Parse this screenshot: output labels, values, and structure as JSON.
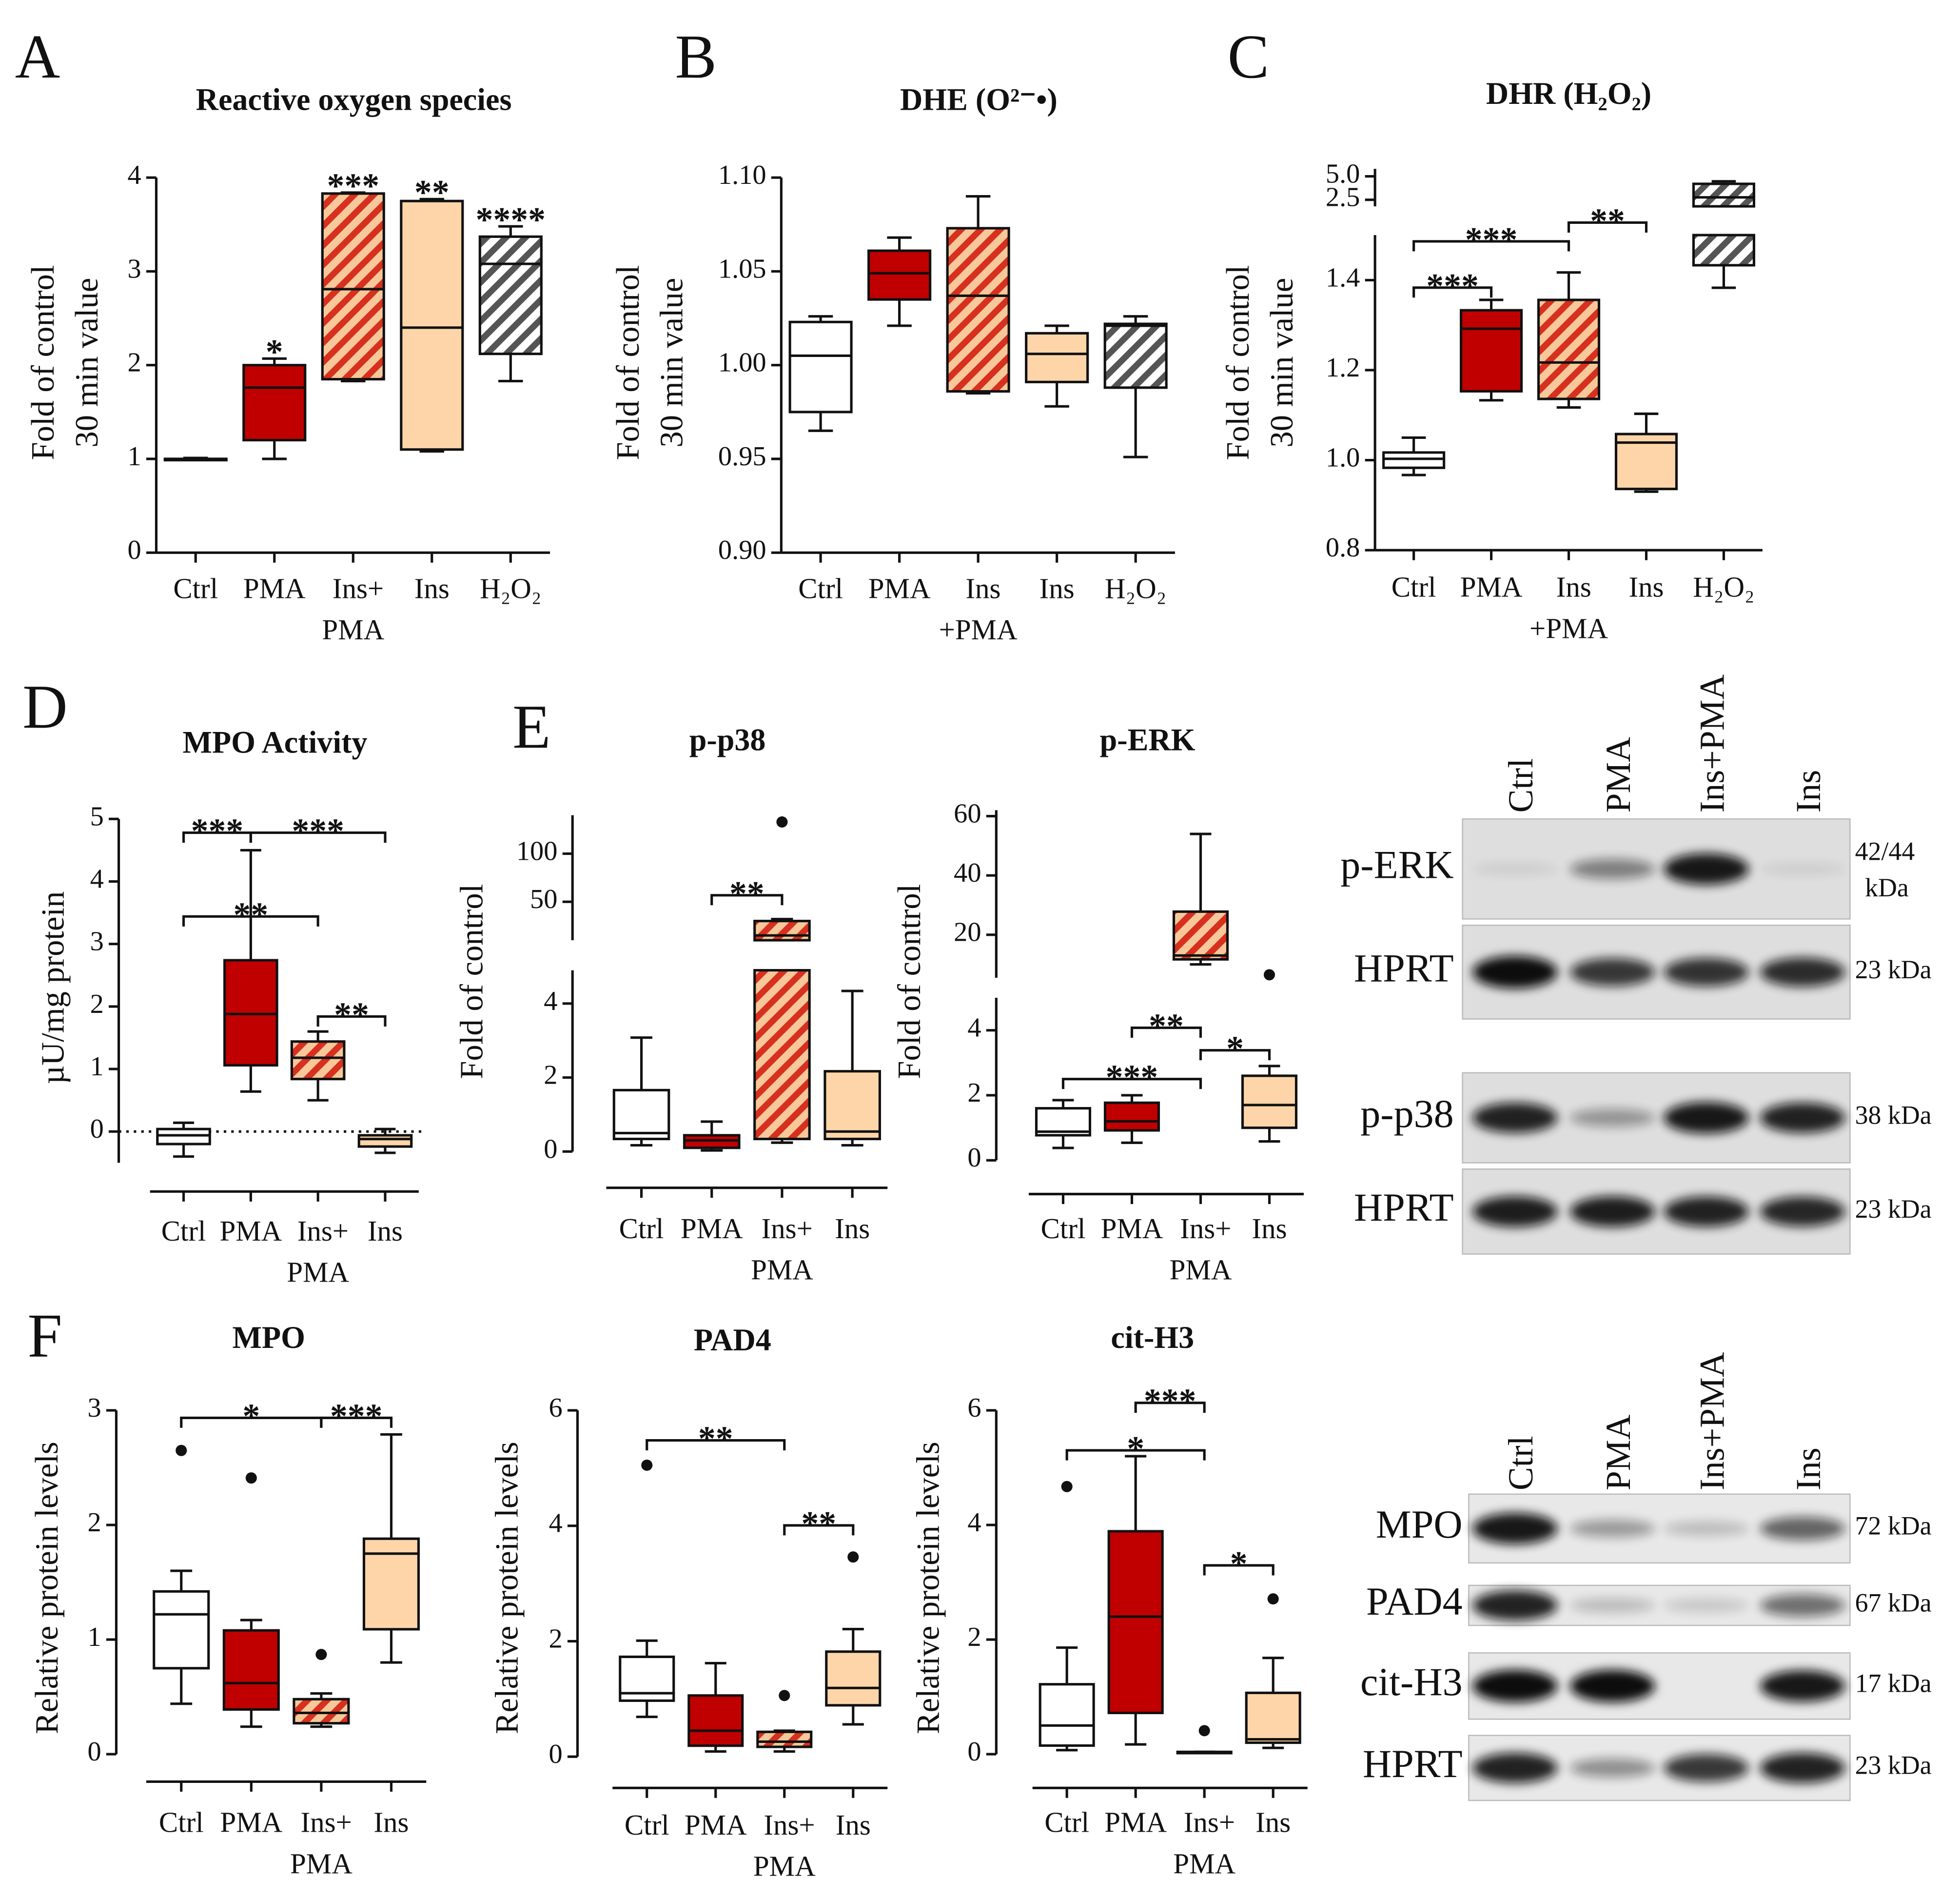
{
  "panel_letters": [
    "A",
    "B",
    "C",
    "D",
    "E",
    "F"
  ],
  "chart_data": [
    {
      "type": "box",
      "title": "Reactive oxygen species",
      "ylabel": [
        "Fold of control",
        "30 min value"
      ],
      "categories": [
        [
          "Ctrl"
        ],
        [
          "PMA"
        ],
        [
          "Ins+",
          "PMA"
        ],
        [
          "Ins"
        ],
        [
          "H₂O₂"
        ]
      ],
      "colors": [
        "#ffffff",
        "#c00000",
        "#f8c89a",
        "#fdd5a8",
        "#ffffff"
      ],
      "hatch_colors": [
        null,
        null,
        "#d7301f",
        null,
        "#555555"
      ],
      "boxes": [
        {
          "min": 0.99,
          "q1": 0.99,
          "median": 1,
          "q3": 1,
          "max": 1.01
        },
        {
          "min": 1.0,
          "q1": 1.2,
          "median": 1.76,
          "q3": 2.0,
          "max": 2.07
        },
        {
          "min": 1.83,
          "q1": 1.85,
          "median": 2.81,
          "q3": 3.83,
          "max": 3.84
        },
        {
          "min": 1.08,
          "q1": 1.1,
          "median": 2.4,
          "q3": 3.75,
          "max": 3.77
        },
        {
          "min": 1.83,
          "q1": 2.12,
          "median": 3.08,
          "q3": 3.37,
          "max": 3.48
        }
      ],
      "ylim": [
        0,
        4
      ],
      "yticks": [
        0,
        1,
        2,
        3,
        4
      ],
      "stars": [
        null,
        "*",
        "***",
        "**",
        "****"
      ]
    },
    {
      "type": "box",
      "title": "DHE (O²⁻•)",
      "ylabel": [
        "Fold of control",
        "30 min value"
      ],
      "categories": [
        [
          "Ctrl"
        ],
        [
          "PMA"
        ],
        [
          "Ins",
          "+PMA"
        ],
        [
          "Ins"
        ],
        [
          "H₂O₂"
        ]
      ],
      "colors": [
        "#ffffff",
        "#c00000",
        "#f8c89a",
        "#fdd5a8",
        "#ffffff"
      ],
      "hatch_colors": [
        null,
        null,
        "#d7301f",
        null,
        "#555555"
      ],
      "boxes": [
        {
          "min": 0.965,
          "q1": 0.975,
          "median": 1.005,
          "q3": 1.023,
          "max": 1.026
        },
        {
          "min": 1.021,
          "q1": 1.035,
          "median": 1.049,
          "q3": 1.061,
          "max": 1.068
        },
        {
          "min": 0.985,
          "q1": 0.986,
          "median": 1.037,
          "q3": 1.073,
          "max": 1.09
        },
        {
          "min": 0.978,
          "q1": 0.991,
          "median": 1.006,
          "q3": 1.017,
          "max": 1.021
        },
        {
          "min": 0.951,
          "q1": 0.988,
          "median": 1.021,
          "q3": 1.022,
          "max": 1.026
        }
      ],
      "ylim": [
        0.9,
        1.1
      ],
      "yticks": [
        {
          "value": 0.9,
          "label": "0.90"
        },
        {
          "value": 0.95,
          "label": "0.95"
        },
        {
          "value": 1,
          "label": "1.00"
        },
        {
          "value": 1.05,
          "label": "1.05"
        },
        {
          "value": 1.1,
          "label": "1.10"
        }
      ]
    },
    {
      "type": "box",
      "title": "DHR (H₂O₂)",
      "ylabel": [
        "Fold of control",
        "30 min value"
      ],
      "categories": [
        [
          "Ctrl"
        ],
        [
          "PMA"
        ],
        [
          "Ins",
          "+PMA"
        ],
        [
          "Ins"
        ],
        [
          "H₂O₂"
        ]
      ],
      "colors": [
        "#ffffff",
        "#c00000",
        "#f8c89a",
        "#fdd5a8",
        "#ffffff"
      ],
      "hatch_colors": [
        null,
        null,
        "#d7301f",
        null,
        "#555555"
      ],
      "boxes": [
        {
          "min": 0.967,
          "q1": 0.983,
          "median": 1.003,
          "q3": 1.017,
          "max": 1.05
        },
        {
          "min": 1.133,
          "q1": 1.153,
          "median": 1.292,
          "q3": 1.333,
          "max": 1.356
        },
        {
          "min": 1.117,
          "q1": 1.136,
          "median": 1.217,
          "q3": 1.356,
          "max": 1.417
        },
        {
          "min": 0.93,
          "q1": 0.936,
          "median": 1.039,
          "q3": 1.058,
          "max": 1.103
        },
        {
          "min": 1.383,
          "q1": 1.433,
          "median": 2.76,
          "q3": 4.2,
          "max": 4.47
        }
      ],
      "axis_segments": [
        {
          "ylim": [
            0.8,
            1.5
          ],
          "yticks": [
            0.8,
            {
              "value": 1,
              "label": "1.0"
            },
            1.2,
            1.4
          ]
        },
        {
          "ylim": [
            1.8,
            5.8
          ],
          "yticks": [
            2.5,
            {
              "value": 5,
              "label": "5.0"
            }
          ]
        }
      ],
      "brackets": [
        {
          "from": 0,
          "to": 1,
          "label": "***"
        },
        {
          "from": 0,
          "to": 2,
          "label": "***"
        },
        {
          "from": 2,
          "to": 3,
          "label": "**"
        }
      ]
    },
    {
      "type": "box",
      "title": "MPO Activity",
      "ylabel": [
        "µU/mg protein"
      ],
      "categories": [
        [
          "Ctrl"
        ],
        [
          "PMA"
        ],
        [
          "Ins+",
          "PMA"
        ],
        [
          "Ins"
        ]
      ],
      "colors": [
        "#ffffff",
        "#c00000",
        "#f8c89a",
        "#fdd5a8"
      ],
      "hatch_colors": [
        null,
        null,
        "#d7301f",
        null
      ],
      "boxes": [
        {
          "min": -0.4,
          "q1": -0.2,
          "median": -0.06,
          "q3": 0.04,
          "max": 0.14
        },
        {
          "min": 0.64,
          "q1": 1.06,
          "median": 1.88,
          "q3": 2.74,
          "max": 4.5
        },
        {
          "min": 0.5,
          "q1": 0.84,
          "median": 1.18,
          "q3": 1.44,
          "max": 1.6
        },
        {
          "min": -0.34,
          "q1": -0.24,
          "median": -0.12,
          "q3": -0.06,
          "max": 0.04
        }
      ],
      "ylim": [
        -0.5,
        5
      ],
      "yticks": [
        0,
        1,
        2,
        3,
        4,
        5
      ],
      "zero_line": true,
      "brackets": [
        {
          "from": 0,
          "to": 1,
          "label": "***"
        },
        {
          "from": 1,
          "to": 3,
          "label": "***"
        },
        {
          "from": 0,
          "to": 2,
          "label": "**"
        },
        {
          "from": 2,
          "to": 3,
          "label": "**"
        }
      ]
    },
    {
      "type": "box",
      "title": "p-p38",
      "ylabel": [
        "Fold of control"
      ],
      "categories": [
        [
          "Ctrl"
        ],
        [
          "PMA"
        ],
        [
          "Ins+",
          "PMA"
        ],
        [
          "Ins"
        ]
      ],
      "colors": [
        "#ffffff",
        "#c00000",
        "#f8c89a",
        "#fdd5a8"
      ],
      "hatch_colors": [
        null,
        null,
        "#d7301f",
        null
      ],
      "boxes": [
        {
          "min": 0.17,
          "q1": 0.34,
          "median": 0.5,
          "q3": 1.66,
          "max": 3.08
        },
        {
          "min": 0.03,
          "q1": 0.1,
          "median": 0.3,
          "q3": 0.44,
          "max": 0.81
        },
        {
          "min": 0.24,
          "q1": 0.34,
          "median": 15,
          "q3": 30,
          "max": 32,
          "outliers": [
            133
          ]
        },
        {
          "min": 0.17,
          "q1": 0.34,
          "median": 0.54,
          "q3": 2.17,
          "max": 4.34
        }
      ],
      "axis_segments": [
        {
          "ylim": [
            0,
            4.9
          ],
          "yticks": [
            0,
            2,
            4
          ]
        },
        {
          "ylim": [
            10,
            140
          ],
          "yticks": [
            50,
            100
          ]
        }
      ],
      "brackets": [
        {
          "from": 1,
          "to": 2,
          "label": "**"
        }
      ]
    },
    {
      "type": "box",
      "title": "p-ERK",
      "ylabel": [
        "Fold of control"
      ],
      "categories": [
        [
          "Ctrl"
        ],
        [
          "PMA"
        ],
        [
          "Ins+",
          "PMA"
        ],
        [
          "Ins"
        ]
      ],
      "colors": [
        "#ffffff",
        "#c00000",
        "#f8c89a",
        "#fdd5a8"
      ],
      "hatch_colors": [
        null,
        null,
        "#d7301f",
        null
      ],
      "boxes": [
        {
          "min": 0.38,
          "q1": 0.77,
          "median": 0.88,
          "q3": 1.6,
          "max": 1.85
        },
        {
          "min": 0.54,
          "q1": 0.92,
          "median": 1.2,
          "q3": 1.77,
          "max": 2.0
        },
        {
          "min": 10,
          "q1": 11.7,
          "median": 13,
          "q3": 27.8,
          "max": 54
        },
        {
          "min": 0.58,
          "q1": 1.0,
          "median": 1.7,
          "q3": 2.6,
          "max": 2.9,
          "outliers": [
            6.5
          ]
        }
      ],
      "axis_segments": [
        {
          "ylim": [
            0,
            5
          ],
          "yticks": [
            0,
            2,
            4
          ]
        },
        {
          "ylim": [
            5.5,
            62
          ],
          "yticks": [
            20,
            40,
            60
          ]
        }
      ],
      "brackets": [
        {
          "from": 1,
          "to": 2,
          "label": "**"
        },
        {
          "from": 0,
          "to": 2,
          "label": "***"
        },
        {
          "from": 2,
          "to": 3,
          "label": "*"
        }
      ]
    },
    {
      "type": "box",
      "title": "MPO",
      "ylabel": [
        "Relative protein levels"
      ],
      "categories": [
        [
          "Ctrl"
        ],
        [
          "PMA"
        ],
        [
          "Ins+",
          "PMA"
        ],
        [
          "Ins"
        ]
      ],
      "colors": [
        "#ffffff",
        "#c00000",
        "#f8c89a",
        "#fdd5a8"
      ],
      "hatch_colors": [
        null,
        null,
        "#d7301f",
        null
      ],
      "boxes": [
        {
          "min": 0.44,
          "q1": 0.75,
          "median": 1.22,
          "q3": 1.42,
          "max": 1.6,
          "outliers": [
            2.65
          ]
        },
        {
          "min": 0.24,
          "q1": 0.39,
          "median": 0.62,
          "q3": 1.08,
          "max": 1.17,
          "outliers": [
            2.41
          ]
        },
        {
          "min": 0.24,
          "q1": 0.27,
          "median": 0.36,
          "q3": 0.48,
          "max": 0.53,
          "outliers": [
            0.87
          ]
        },
        {
          "min": 0.8,
          "q1": 1.09,
          "median": 1.75,
          "q3": 1.88,
          "max": 2.79
        }
      ],
      "ylim": [
        0,
        3
      ],
      "yticks": [
        0,
        1,
        2,
        3
      ],
      "brackets": [
        {
          "from": 0,
          "to": 2,
          "label": "*"
        },
        {
          "from": 2,
          "to": 3,
          "label": "***"
        }
      ]
    },
    {
      "type": "box",
      "title": "PAD4",
      "ylabel": [
        "Relative protein levels"
      ],
      "categories": [
        [
          "Ctrl"
        ],
        [
          "PMA"
        ],
        [
          "Ins+",
          "PMA"
        ],
        [
          "Ins"
        ]
      ],
      "colors": [
        "#ffffff",
        "#c00000",
        "#f8c89a",
        "#fdd5a8"
      ],
      "hatch_colors": [
        null,
        null,
        "#d7301f",
        null
      ],
      "boxes": [
        {
          "min": 0.69,
          "q1": 0.97,
          "median": 1.1,
          "q3": 1.73,
          "max": 2.01,
          "outliers": [
            5.05
          ]
        },
        {
          "min": 0.09,
          "q1": 0.19,
          "median": 0.45,
          "q3": 1.06,
          "max": 1.62
        },
        {
          "min": 0.09,
          "q1": 0.17,
          "median": 0.26,
          "q3": 0.43,
          "max": 0.45,
          "outliers": [
            1.06
          ]
        },
        {
          "min": 0.56,
          "q1": 0.89,
          "median": 1.19,
          "q3": 1.82,
          "max": 2.21,
          "outliers": [
            3.46
          ]
        }
      ],
      "ylim": [
        0,
        6
      ],
      "yticks": [
        0,
        2,
        4,
        6
      ],
      "brackets": [
        {
          "from": 0,
          "to": 2,
          "label": "**"
        },
        {
          "from": 2,
          "to": 3,
          "label": "**"
        }
      ]
    },
    {
      "type": "box",
      "title": "cit-H3",
      "ylabel": [
        "Relative protein levels"
      ],
      "categories": [
        [
          "Ctrl"
        ],
        [
          "PMA"
        ],
        [
          "Ins+",
          "PMA"
        ],
        [
          "Ins"
        ]
      ],
      "colors": [
        "#ffffff",
        "#c00000",
        "#f8c89a",
        "#fdd5a8"
      ],
      "hatch_colors": [
        null,
        null,
        "#d7301f",
        null
      ],
      "boxes": [
        {
          "min": 0.07,
          "q1": 0.15,
          "median": 0.5,
          "q3": 1.22,
          "max": 1.86,
          "outliers": [
            4.67
          ]
        },
        {
          "min": 0.17,
          "q1": 0.72,
          "median": 2.4,
          "q3": 3.89,
          "max": 5.2
        },
        {
          "min": 0.02,
          "q1": 0.02,
          "median": 0.03,
          "q3": 0.04,
          "max": 0.04,
          "outliers": [
            0.41
          ]
        },
        {
          "min": 0.11,
          "q1": 0.2,
          "median": 0.26,
          "q3": 1.07,
          "max": 1.68,
          "outliers": [
            2.71
          ]
        }
      ],
      "ylim": [
        0,
        6
      ],
      "yticks": [
        0,
        2,
        4,
        6
      ],
      "brackets": [
        {
          "from": 0,
          "to": 2,
          "label": "*"
        },
        {
          "from": 1,
          "to": 2,
          "label": "***"
        },
        {
          "from": 2,
          "to": 3,
          "label": "*"
        }
      ]
    }
  ],
  "blots": [
    {
      "lanes": [
        "Ctrl",
        "PMA",
        "Ins+PMA",
        "Ins"
      ],
      "rows": [
        {
          "label": "p-ERK",
          "size": [
            "42/44",
            "kDa"
          ]
        },
        {
          "label": "HPRT",
          "size": [
            "23 kDa"
          ]
        },
        {
          "label": "p-p38",
          "size": [
            "38 kDa"
          ]
        },
        {
          "label": "HPRT",
          "size": [
            "23 kDa"
          ]
        }
      ]
    },
    {
      "lanes": [
        "Ctrl",
        "PMA",
        "Ins+PMA",
        "Ins"
      ],
      "rows": [
        {
          "label": "MPO",
          "size": [
            "72 kDa"
          ]
        },
        {
          "label": "PAD4",
          "size": [
            "67 kDa"
          ]
        },
        {
          "label": "cit-H3",
          "size": [
            "17 kDa"
          ]
        },
        {
          "label": "HPRT",
          "size": [
            "23 kDa"
          ]
        }
      ]
    }
  ]
}
